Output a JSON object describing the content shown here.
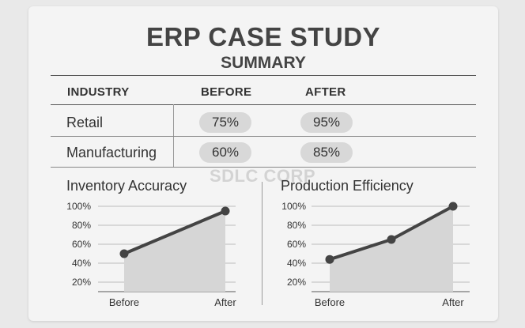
{
  "title": "ERP CASE STUDY",
  "subtitle": "SUMMARY",
  "watermark": "SDLC CORP",
  "table": {
    "headers": [
      "INDUSTRY",
      "BEFORE",
      "AFTER"
    ],
    "rows": [
      {
        "industry": "Retail",
        "before": "75%",
        "after": "95%"
      },
      {
        "industry": "Manufacturing",
        "before": "60%",
        "after": "85%"
      }
    ]
  },
  "chart_data": [
    {
      "type": "area",
      "title": "Inventory Accuracy",
      "categories": [
        "Before",
        "After"
      ],
      "series": [
        {
          "values": [
            50,
            95
          ]
        }
      ],
      "ylim": [
        10,
        100
      ],
      "yticks": [
        20,
        40,
        60,
        80,
        100
      ],
      "ytick_labels": [
        "20%",
        "40%",
        "60%",
        "80%",
        "100%"
      ],
      "grid": true
    },
    {
      "type": "area",
      "title": "Production Efficiency",
      "categories": [
        "Before",
        "After"
      ],
      "series": [
        {
          "values": [
            44,
            65,
            100
          ]
        }
      ],
      "x": [
        0,
        0.5,
        1
      ],
      "ylim": [
        10,
        100
      ],
      "yticks": [
        20,
        40,
        60,
        80,
        100
      ],
      "ytick_labels": [
        "20%",
        "40%",
        "60%",
        "80%",
        "100%"
      ],
      "grid": true
    }
  ],
  "colors": {
    "line": "#444444",
    "area": "#d6d6d6",
    "grid": "#bcbcbc",
    "pill": "#d8d8d8"
  }
}
